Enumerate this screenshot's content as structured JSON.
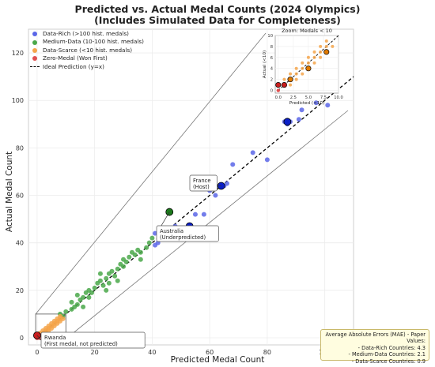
{
  "title_line1": "Predicted vs. Actual Medal Counts (2024 Olympics)",
  "title_line2": "(Includes Simulated Data for Completeness)",
  "colors": {
    "data_rich": "#5a66e8",
    "medium_data": "#4aa84a",
    "data_scarce": "#f5a54a",
    "zero_medal": "#e05050",
    "highlight_rich": "#0a1fc8",
    "highlight_medium": "#1c7a1c",
    "highlight_scarce": "#e07a00",
    "highlight_zero": "#c81e1e"
  },
  "legend": [
    {
      "label": "Data-Rich (>100 hist. medals)",
      "color": "#5a66e8",
      "kind": "dot"
    },
    {
      "label": "Medium-Data (10-100 hist. medals)",
      "color": "#4aa84a",
      "kind": "dot"
    },
    {
      "label": "Data-Scarce (<10 hist. medals)",
      "color": "#f5a54a",
      "kind": "dot"
    },
    {
      "label": "Zero-Medal (Won First)",
      "color": "#e05050",
      "kind": "dot"
    },
    {
      "label": "Ideal Prediction (y=x)",
      "color": "#000000",
      "kind": "dashed-line"
    }
  ],
  "mae": {
    "title": "Average Absolute Errors (MAE) - Paper Values:",
    "rows": [
      "- Data-Rich Countries: 4.3",
      "- Medium-Data Countries: 2.1",
      "- Data-Scarce Countries: 0.9"
    ]
  },
  "chart_data": {
    "type": "scatter",
    "xlabel": "Predicted Medal Count",
    "ylabel": "Actual Medal Count",
    "xlim": [
      -3,
      110
    ],
    "ylim": [
      -3,
      130
    ],
    "xticks": [
      0,
      20,
      40,
      60,
      80,
      100
    ],
    "yticks": [
      0,
      20,
      40,
      60,
      80,
      100,
      120
    ],
    "grid": true,
    "legend_position": "top-left",
    "series": [
      {
        "name": "Data-Rich (>100 hist. medals)",
        "points": [
          [
            42,
            40
          ],
          [
            41,
            39
          ],
          [
            41,
            44
          ],
          [
            44,
            45
          ],
          [
            48,
            47
          ],
          [
            55,
            52
          ],
          [
            58,
            52
          ],
          [
            60,
            62
          ],
          [
            62,
            60
          ],
          [
            65,
            64
          ],
          [
            66,
            65
          ],
          [
            68,
            73
          ],
          [
            75,
            78
          ],
          [
            80,
            75
          ],
          [
            88,
            91
          ],
          [
            91,
            92
          ],
          [
            92,
            96
          ],
          [
            97,
            99
          ],
          [
            101,
            98
          ],
          [
            87,
            90
          ],
          [
            53,
            47
          ],
          [
            64,
            64
          ],
          [
            86,
            91
          ]
        ]
      },
      {
        "name": "Medium-Data (10-100 hist. medals)",
        "points": [
          [
            9,
            9
          ],
          [
            10,
            11
          ],
          [
            12,
            12
          ],
          [
            13,
            13
          ],
          [
            14,
            14
          ],
          [
            15,
            16
          ],
          [
            16,
            17
          ],
          [
            17,
            19
          ],
          [
            18,
            20
          ],
          [
            19,
            19
          ],
          [
            20,
            21
          ],
          [
            21,
            23
          ],
          [
            22,
            24
          ],
          [
            23,
            22
          ],
          [
            24,
            25
          ],
          [
            25,
            27
          ],
          [
            26,
            28
          ],
          [
            27,
            26
          ],
          [
            28,
            29
          ],
          [
            29,
            31
          ],
          [
            30,
            33
          ],
          [
            31,
            32
          ],
          [
            32,
            34
          ],
          [
            33,
            36
          ],
          [
            34,
            35
          ],
          [
            35,
            37
          ],
          [
            36,
            36
          ],
          [
            38,
            38
          ],
          [
            39,
            40
          ],
          [
            40,
            42
          ],
          [
            12,
            15
          ],
          [
            18,
            17
          ],
          [
            25,
            23
          ],
          [
            30,
            30
          ],
          [
            46,
            53
          ],
          [
            16,
            13
          ],
          [
            22,
            27
          ],
          [
            28,
            24
          ],
          [
            8,
            10
          ],
          [
            14,
            18
          ],
          [
            36,
            33
          ],
          [
            24,
            20
          ]
        ]
      },
      {
        "name": "Data-Scarce (<10 hist. medals)",
        "points": [
          [
            1,
            2
          ],
          [
            2,
            3
          ],
          [
            2,
            1
          ],
          [
            3,
            4
          ],
          [
            3,
            2
          ],
          [
            4,
            5
          ],
          [
            4,
            3
          ],
          [
            5,
            6
          ],
          [
            5,
            4
          ],
          [
            6,
            7
          ],
          [
            6,
            5
          ],
          [
            7,
            8
          ],
          [
            7,
            6
          ],
          [
            8,
            7
          ],
          [
            8,
            9
          ],
          [
            1,
            1
          ],
          [
            3,
            3
          ],
          [
            5,
            5
          ],
          [
            7,
            7
          ],
          [
            2,
            2
          ],
          [
            4,
            4
          ],
          [
            6,
            6
          ],
          [
            8,
            8
          ],
          [
            9,
            8
          ]
        ]
      },
      {
        "name": "Zero-Medal (Won First)",
        "points": [
          [
            0,
            1
          ],
          [
            0,
            0
          ],
          [
            1,
            0
          ],
          [
            0,
            1
          ],
          [
            1,
            1
          ]
        ]
      }
    ],
    "highlights": [
      {
        "label": "France\n(Host)",
        "x": 64,
        "y": 64,
        "group": "rich"
      },
      {
        "label": "Australia\n(Underpredicted)",
        "x": 46,
        "y": 53,
        "group": "medium"
      },
      {
        "label": "Rwanda\n(First medal, not predicted)",
        "x": 0,
        "y": 1,
        "group": "zero"
      },
      {
        "label": "",
        "x": 53,
        "y": 47,
        "group": "rich"
      },
      {
        "label": "",
        "x": 87,
        "y": 91,
        "group": "rich"
      }
    ],
    "inset": {
      "title": "Zoom: Medals < 10",
      "xlabel": "Predicted (<10)",
      "ylabel": "Actual (<10)",
      "xlim": [
        -0.5,
        10
      ],
      "ylim": [
        -0.5,
        10
      ],
      "xticks": [
        "0.0",
        "2.5",
        "5.0",
        "7.5",
        "10.0"
      ],
      "yticks": [
        "0",
        "2",
        "4",
        "6",
        "8",
        "10"
      ],
      "scarce_points": [
        [
          1,
          2
        ],
        [
          2,
          3
        ],
        [
          2,
          1
        ],
        [
          3,
          4
        ],
        [
          3,
          2
        ],
        [
          4,
          5
        ],
        [
          4,
          3
        ],
        [
          5,
          6
        ],
        [
          5,
          4
        ],
        [
          6,
          7
        ],
        [
          6,
          5
        ],
        [
          7,
          8
        ],
        [
          7,
          6
        ],
        [
          8,
          7
        ],
        [
          8,
          9
        ],
        [
          3,
          3
        ],
        [
          5,
          5
        ],
        [
          7,
          7
        ],
        [
          4,
          4
        ],
        [
          6,
          6
        ],
        [
          8,
          8
        ],
        [
          9,
          8
        ],
        [
          2,
          2
        ]
      ],
      "zero_points": [
        [
          0,
          1
        ],
        [
          1,
          1
        ],
        [
          0,
          0
        ]
      ],
      "highlight_points": [
        [
          0,
          1
        ],
        [
          1,
          1
        ],
        [
          2,
          2
        ],
        [
          5,
          4
        ],
        [
          8,
          7
        ]
      ]
    }
  }
}
